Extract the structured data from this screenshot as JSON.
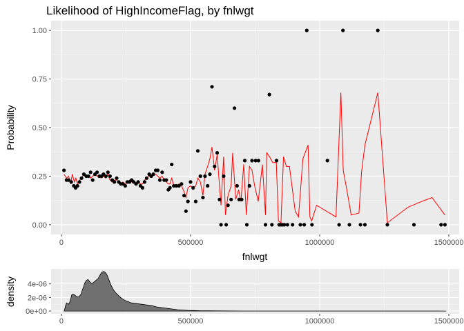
{
  "chart_data": [
    {
      "type": "scatter",
      "title": "Likelihood of HighIncomeFlag, by fnlwgt",
      "xlabel": "fnlwgt",
      "ylabel": "Probability",
      "xlim": [
        -40000,
        1540000
      ],
      "ylim": [
        -0.05,
        1.05
      ],
      "x_ticks": [
        0,
        500000,
        1000000,
        1500000
      ],
      "x_tick_labels": [
        "0",
        "500000",
        "1000000",
        "1500000"
      ],
      "y_ticks": [
        0,
        0.25,
        0.5,
        0.75,
        1
      ],
      "y_tick_labels": [
        "0.00",
        "0.25",
        "0.50",
        "0.75",
        "1.00"
      ],
      "grid": true,
      "colors": {
        "panel": "#ebebeb",
        "grid_major": "#ffffff",
        "point": "#000000",
        "line": "#ff0000"
      },
      "points": [
        [
          10000,
          0.28
        ],
        [
          20000,
          0.23
        ],
        [
          28000,
          0.23
        ],
        [
          38000,
          0.22
        ],
        [
          48000,
          0.2
        ],
        [
          55000,
          0.19
        ],
        [
          62000,
          0.2
        ],
        [
          70000,
          0.22
        ],
        [
          78000,
          0.24
        ],
        [
          87000,
          0.26
        ],
        [
          96000,
          0.25
        ],
        [
          105000,
          0.25
        ],
        [
          113000,
          0.27
        ],
        [
          121000,
          0.23
        ],
        [
          130000,
          0.26
        ],
        [
          138000,
          0.27
        ],
        [
          147000,
          0.25
        ],
        [
          155000,
          0.25
        ],
        [
          163000,
          0.26
        ],
        [
          172000,
          0.25
        ],
        [
          180000,
          0.27
        ],
        [
          188000,
          0.25
        ],
        [
          197000,
          0.23
        ],
        [
          205000,
          0.22
        ],
        [
          214000,
          0.24
        ],
        [
          222000,
          0.22
        ],
        [
          230000,
          0.21
        ],
        [
          238000,
          0.21
        ],
        [
          247000,
          0.2
        ],
        [
          255000,
          0.22
        ],
        [
          264000,
          0.22
        ],
        [
          272000,
          0.23
        ],
        [
          280000,
          0.22
        ],
        [
          289000,
          0.21
        ],
        [
          297000,
          0.22
        ],
        [
          306000,
          0.2
        ],
        [
          314000,
          0.19
        ],
        [
          322000,
          0.22
        ],
        [
          330000,
          0.24
        ],
        [
          340000,
          0.26
        ],
        [
          348000,
          0.25
        ],
        [
          356000,
          0.26
        ],
        [
          365000,
          0.28
        ],
        [
          373000,
          0.28
        ],
        [
          381000,
          0.23
        ],
        [
          390000,
          0.27
        ],
        [
          398000,
          0.23
        ],
        [
          406000,
          0.23
        ],
        [
          414000,
          0.18
        ],
        [
          420000,
          0.19
        ],
        [
          427000,
          0.31
        ],
        [
          435000,
          0.2
        ],
        [
          445000,
          0.2
        ],
        [
          455000,
          0.2
        ],
        [
          465000,
          0.21
        ],
        [
          475000,
          0.15
        ],
        [
          482000,
          0.07
        ],
        [
          490000,
          0.12
        ],
        [
          500000,
          0.22
        ],
        [
          510000,
          0.19
        ],
        [
          520000,
          0.12
        ],
        [
          528000,
          0.38
        ],
        [
          538000,
          0.25
        ],
        [
          548000,
          0.14
        ],
        [
          556000,
          0.25
        ],
        [
          566000,
          0.2
        ],
        [
          575000,
          0.26
        ],
        [
          583000,
          0.71
        ],
        [
          593000,
          0.3
        ],
        [
          603000,
          0.37
        ],
        [
          612000,
          0.13
        ],
        [
          618000,
          0
        ],
        [
          628000,
          0.25
        ],
        [
          638000,
          0
        ],
        [
          645000,
          0.1
        ],
        [
          657000,
          0.13
        ],
        [
          670000,
          0.6
        ],
        [
          680000,
          0.2
        ],
        [
          688000,
          0.13
        ],
        [
          698000,
          0.13
        ],
        [
          710000,
          0.33
        ],
        [
          718000,
          0
        ],
        [
          728000,
          0.2
        ],
        [
          738000,
          0.33
        ],
        [
          752000,
          0.33
        ],
        [
          763000,
          0.33
        ],
        [
          790000,
          0
        ],
        [
          805000,
          0.67
        ],
        [
          815000,
          0
        ],
        [
          833000,
          0.33
        ],
        [
          843000,
          0
        ],
        [
          850000,
          0
        ],
        [
          856000,
          0
        ],
        [
          863000,
          0
        ],
        [
          875000,
          0
        ],
        [
          895000,
          0
        ],
        [
          925000,
          0
        ],
        [
          940000,
          0
        ],
        [
          950000,
          1
        ],
        [
          970000,
          0
        ],
        [
          1030000,
          0.33
        ],
        [
          1075000,
          0
        ],
        [
          1090000,
          1
        ],
        [
          1115000,
          0
        ],
        [
          1158000,
          0
        ],
        [
          1175000,
          0
        ],
        [
          1225000,
          1
        ],
        [
          1262000,
          0
        ],
        [
          1365000,
          0
        ],
        [
          1470000,
          0
        ],
        [
          1485000,
          0
        ]
      ],
      "line": [
        [
          10000,
          0.26
        ],
        [
          20000,
          0.24
        ],
        [
          28000,
          0.25
        ],
        [
          36000,
          0.21
        ],
        [
          42000,
          0.26
        ],
        [
          50000,
          0.22
        ],
        [
          56000,
          0.24
        ],
        [
          62000,
          0.21
        ],
        [
          70000,
          0.23
        ],
        [
          78000,
          0.24
        ],
        [
          87000,
          0.26
        ],
        [
          96000,
          0.25
        ],
        [
          105000,
          0.25
        ],
        [
          113000,
          0.24
        ],
        [
          121000,
          0.25
        ],
        [
          130000,
          0.26
        ],
        [
          138000,
          0.25
        ],
        [
          147000,
          0.25
        ],
        [
          155000,
          0.24
        ],
        [
          163000,
          0.25
        ],
        [
          172000,
          0.24
        ],
        [
          180000,
          0.26
        ],
        [
          188000,
          0.23
        ],
        [
          197000,
          0.22
        ],
        [
          205000,
          0.23
        ],
        [
          214000,
          0.23
        ],
        [
          222000,
          0.22
        ],
        [
          230000,
          0.21
        ],
        [
          238000,
          0.22
        ],
        [
          247000,
          0.21
        ],
        [
          255000,
          0.22
        ],
        [
          264000,
          0.23
        ],
        [
          272000,
          0.22
        ],
        [
          280000,
          0.22
        ],
        [
          289000,
          0.21
        ],
        [
          297000,
          0.22
        ],
        [
          306000,
          0.21
        ],
        [
          314000,
          0.21
        ],
        [
          322000,
          0.23
        ],
        [
          330000,
          0.24
        ],
        [
          340000,
          0.25
        ],
        [
          348000,
          0.25
        ],
        [
          356000,
          0.26
        ],
        [
          365000,
          0.26
        ],
        [
          373000,
          0.25
        ],
        [
          381000,
          0.24
        ],
        [
          390000,
          0.25
        ],
        [
          398000,
          0.23
        ],
        [
          406000,
          0.22
        ],
        [
          414000,
          0.21
        ],
        [
          420000,
          0.21
        ],
        [
          427000,
          0.24
        ],
        [
          435000,
          0.2
        ],
        [
          445000,
          0.2
        ],
        [
          455000,
          0.21
        ],
        [
          465000,
          0.2
        ],
        [
          475000,
          0.17
        ],
        [
          482000,
          0.14
        ],
        [
          490000,
          0.19
        ],
        [
          500000,
          0.2
        ],
        [
          510000,
          0.19
        ],
        [
          520000,
          0.2
        ],
        [
          528000,
          0.24
        ],
        [
          538000,
          0.22
        ],
        [
          548000,
          0.15
        ],
        [
          556000,
          0.26
        ],
        [
          566000,
          0.3
        ],
        [
          575000,
          0.34
        ],
        [
          583000,
          0.4
        ],
        [
          593000,
          0.28
        ],
        [
          603000,
          0.36
        ],
        [
          612000,
          0.2
        ],
        [
          618000,
          0.1
        ],
        [
          628000,
          0.35
        ],
        [
          635000,
          0.05
        ],
        [
          645000,
          0.15
        ],
        [
          657000,
          0.2
        ],
        [
          663000,
          0.37
        ],
        [
          675000,
          0.13
        ],
        [
          686000,
          0.18
        ],
        [
          695000,
          0.12
        ],
        [
          706000,
          0.31
        ],
        [
          716000,
          0.05
        ],
        [
          728000,
          0.3
        ],
        [
          738000,
          0.28
        ],
        [
          748000,
          0.2
        ],
        [
          762000,
          0.12
        ],
        [
          778000,
          0.31
        ],
        [
          790000,
          0.05
        ],
        [
          795000,
          0.37
        ],
        [
          806000,
          0.35
        ],
        [
          818000,
          0.32
        ],
        [
          832000,
          0.32
        ],
        [
          840000,
          0.02
        ],
        [
          850000,
          0.01
        ],
        [
          860000,
          0.35
        ],
        [
          871000,
          0.3
        ],
        [
          883000,
          0.3
        ],
        [
          905000,
          0.07
        ],
        [
          918000,
          0.04
        ],
        [
          935000,
          0.34
        ],
        [
          955000,
          0.41
        ],
        [
          962000,
          0.04
        ],
        [
          969000,
          0.02
        ],
        [
          988000,
          0.1
        ],
        [
          1063000,
          0.04
        ],
        [
          1082000,
          0.68
        ],
        [
          1091000,
          0.28
        ],
        [
          1105000,
          0.18
        ],
        [
          1122000,
          0.05
        ],
        [
          1152000,
          0.06
        ],
        [
          1162000,
          0.27
        ],
        [
          1175000,
          0.41
        ],
        [
          1225000,
          0.68
        ],
        [
          1262000,
          0.01
        ],
        [
          1342000,
          0.09
        ],
        [
          1395000,
          0.12
        ],
        [
          1435000,
          0.14
        ],
        [
          1485000,
          0.05
        ]
      ]
    },
    {
      "type": "area",
      "ylabel": "density",
      "xlim": [
        -40000,
        1540000
      ],
      "ylim": [
        -4e-07,
        6.2e-06
      ],
      "x_ticks": [
        0,
        500000,
        1000000,
        1500000
      ],
      "x_tick_labels": [
        "0",
        "500000",
        "1000000",
        "1500000"
      ],
      "y_ticks": [
        0,
        2e-06,
        4e-06
      ],
      "y_tick_labels": [
        "0e+00",
        "2e-06",
        "4e-06"
      ],
      "grid": true,
      "colors": {
        "fill": "#707070",
        "outline": "#000000"
      },
      "x": [
        10000,
        12000,
        16000,
        20000,
        24000,
        28000,
        32000,
        36000,
        40000,
        44000,
        50000,
        56000,
        62000,
        66000,
        70000,
        76000,
        82000,
        86000,
        90000,
        96000,
        100000,
        104000,
        108000,
        112000,
        118000,
        124000,
        130000,
        136000,
        142000,
        148000,
        154000,
        160000,
        166000,
        172000,
        178000,
        184000,
        190000,
        196000,
        202000,
        210000,
        218000,
        226000,
        236000,
        250000,
        270000,
        290000,
        310000,
        330000,
        350000,
        370000,
        390000,
        410000,
        430000,
        450000,
        470000,
        490000,
        510000,
        540000,
        570000,
        600000,
        650000,
        700000,
        800000,
        900000,
        1000000,
        1100000,
        1200000,
        1300000,
        1400000,
        1490000
      ],
      "y": [
        0,
        2e-07,
        8e-07,
        1.2e-06,
        1.1e-06,
        1e-06,
        1.3e-06,
        1.8e-06,
        2.4e-06,
        2.5e-06,
        2.4e-06,
        2.2e-06,
        2.1e-06,
        2.1e-06,
        2.2e-06,
        2.5e-06,
        3.2e-06,
        3.6e-06,
        4.1e-06,
        4.5e-06,
        4.6e-06,
        4.6e-06,
        4.4e-06,
        4.2e-06,
        4.1e-06,
        4.2e-06,
        4.4e-06,
        4.6e-06,
        4.8e-06,
        5.2e-06,
        5.6e-06,
        5.8e-06,
        5.8e-06,
        5.6e-06,
        5.2e-06,
        4.6e-06,
        4e-06,
        3.5e-06,
        3.1e-06,
        2.7e-06,
        2.4e-06,
        2.1e-06,
        1.8e-06,
        1.5e-06,
        1.2e-06,
        1.1e-06,
        1e-06,
        9e-07,
        8e-07,
        6e-07,
        5e-07,
        4e-07,
        3e-07,
        2e-07,
        1.5e-07,
        1e-07,
        8e-08,
        5e-08,
        4e-08,
        3e-08,
        2e-08,
        1e-08,
        5e-09,
        4e-09,
        3e-09,
        2e-09,
        2e-09,
        2e-09,
        2e-09,
        0
      ]
    }
  ]
}
